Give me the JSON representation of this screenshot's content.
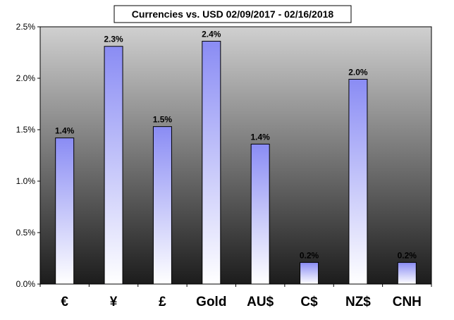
{
  "chart_data": {
    "type": "bar",
    "title": "Currencies vs. USD 02/09/2017 - 02/16/2018",
    "categories": [
      "€",
      "¥",
      "£",
      "Gold",
      "AU$",
      "C$",
      "NZ$",
      "CNH"
    ],
    "values": [
      1.42,
      2.31,
      1.53,
      2.36,
      1.36,
      0.21,
      1.99,
      0.21
    ],
    "data_labels": [
      "1.4%",
      "2.3%",
      "1.5%",
      "2.4%",
      "1.4%",
      "0.2%",
      "2.0%",
      "0.2%"
    ],
    "y_ticks": [
      "0.0%",
      "0.5%",
      "1.0%",
      "1.5%",
      "2.0%",
      "2.5%"
    ],
    "ylim": [
      0,
      2.5
    ],
    "xlabel": "",
    "ylabel": "",
    "grid": false,
    "legend": "none",
    "colors": {
      "plot_top": "#d0d0d0",
      "plot_bottom": "#1c1c1c",
      "bar_top": "#8a8cf4",
      "bar_bottom": "#ffffff"
    }
  }
}
